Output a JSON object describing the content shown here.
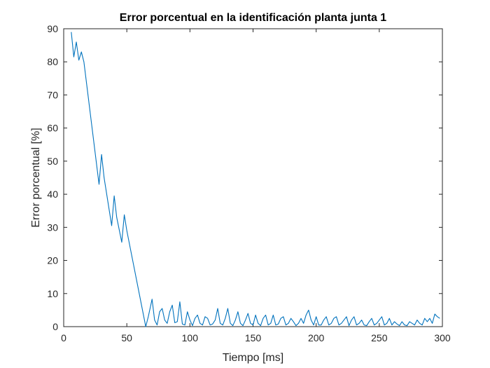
{
  "chart_data": {
    "type": "line",
    "title": "Error porcentual en la identificación planta junta 1",
    "xlabel": "Tiempo [ms]",
    "ylabel": "Error porcentual [%]",
    "xlim": [
      0,
      300
    ],
    "ylim": [
      0,
      90
    ],
    "xticks": [
      0,
      50,
      100,
      150,
      200,
      250,
      300
    ],
    "yticks": [
      0,
      10,
      20,
      30,
      40,
      50,
      60,
      70,
      80,
      90
    ],
    "grid": false,
    "line_color": "#0072BD",
    "series": [
      {
        "x": [
          6,
          8,
          10,
          12,
          14,
          16,
          28,
          30,
          32,
          38,
          40,
          42,
          46,
          48,
          50,
          65,
          67,
          70,
          72,
          74,
          76,
          78,
          80,
          82,
          84,
          86,
          88,
          90,
          92,
          94,
          96,
          98,
          100,
          102,
          104,
          106,
          108,
          110,
          112,
          114,
          116,
          118,
          120,
          122,
          124,
          126,
          128,
          130,
          132,
          134,
          136,
          138,
          140,
          142,
          144,
          146,
          148,
          150,
          152,
          154,
          156,
          158,
          160,
          162,
          164,
          166,
          168,
          170,
          172,
          174,
          176,
          178,
          180,
          182,
          184,
          186,
          188,
          190,
          192,
          194,
          196,
          198,
          200,
          202,
          204,
          206,
          208,
          210,
          212,
          214,
          216,
          218,
          220,
          222,
          224,
          226,
          228,
          230,
          232,
          234,
          236,
          238,
          240,
          242,
          244,
          246,
          248,
          250,
          252,
          254,
          256,
          258,
          260,
          262,
          264,
          266,
          268,
          270,
          272,
          274,
          276,
          278,
          280,
          282,
          284,
          286,
          288,
          290,
          292,
          294,
          296,
          298
        ],
        "y": [
          89,
          81.5,
          86,
          80.5,
          83,
          80,
          43,
          52,
          45,
          30.5,
          39.5,
          33,
          25.5,
          33.8,
          29,
          0,
          3,
          8.3,
          2,
          0.5,
          4.5,
          5.5,
          2,
          1,
          4.5,
          6.5,
          1.2,
          1.5,
          7.5,
          0.8,
          0.5,
          4.5,
          2,
          0.3,
          2.5,
          3.5,
          1,
          0.5,
          3,
          2.5,
          0.5,
          0.8,
          2,
          5.5,
          1,
          0.5,
          2.5,
          5.5,
          1,
          0.3,
          2,
          4.5,
          1,
          0.3,
          2,
          4,
          1,
          0.5,
          3.5,
          1,
          0.3,
          2.5,
          3.5,
          0.5,
          1,
          3.5,
          0.5,
          0.8,
          2.5,
          3,
          0.5,
          1,
          2.5,
          1.5,
          0.3,
          1,
          2.5,
          1,
          3.5,
          5,
          2,
          0.5,
          3,
          0.5,
          0.5,
          2,
          3,
          0.5,
          1,
          2.5,
          3,
          0.5,
          1,
          2,
          3,
          0.3,
          2,
          3,
          0.5,
          1,
          2,
          0.5,
          0.3,
          1.5,
          2.5,
          0.5,
          1,
          2,
          3,
          0.5,
          1,
          2.5,
          0.5,
          1.5,
          0.8,
          0.3,
          1.5,
          0.5,
          0.3,
          1.5,
          1,
          0.5,
          2,
          1,
          0.5,
          2.5,
          1.5,
          2.5,
          1,
          3.8,
          3,
          2.5
        ]
      }
    ]
  }
}
